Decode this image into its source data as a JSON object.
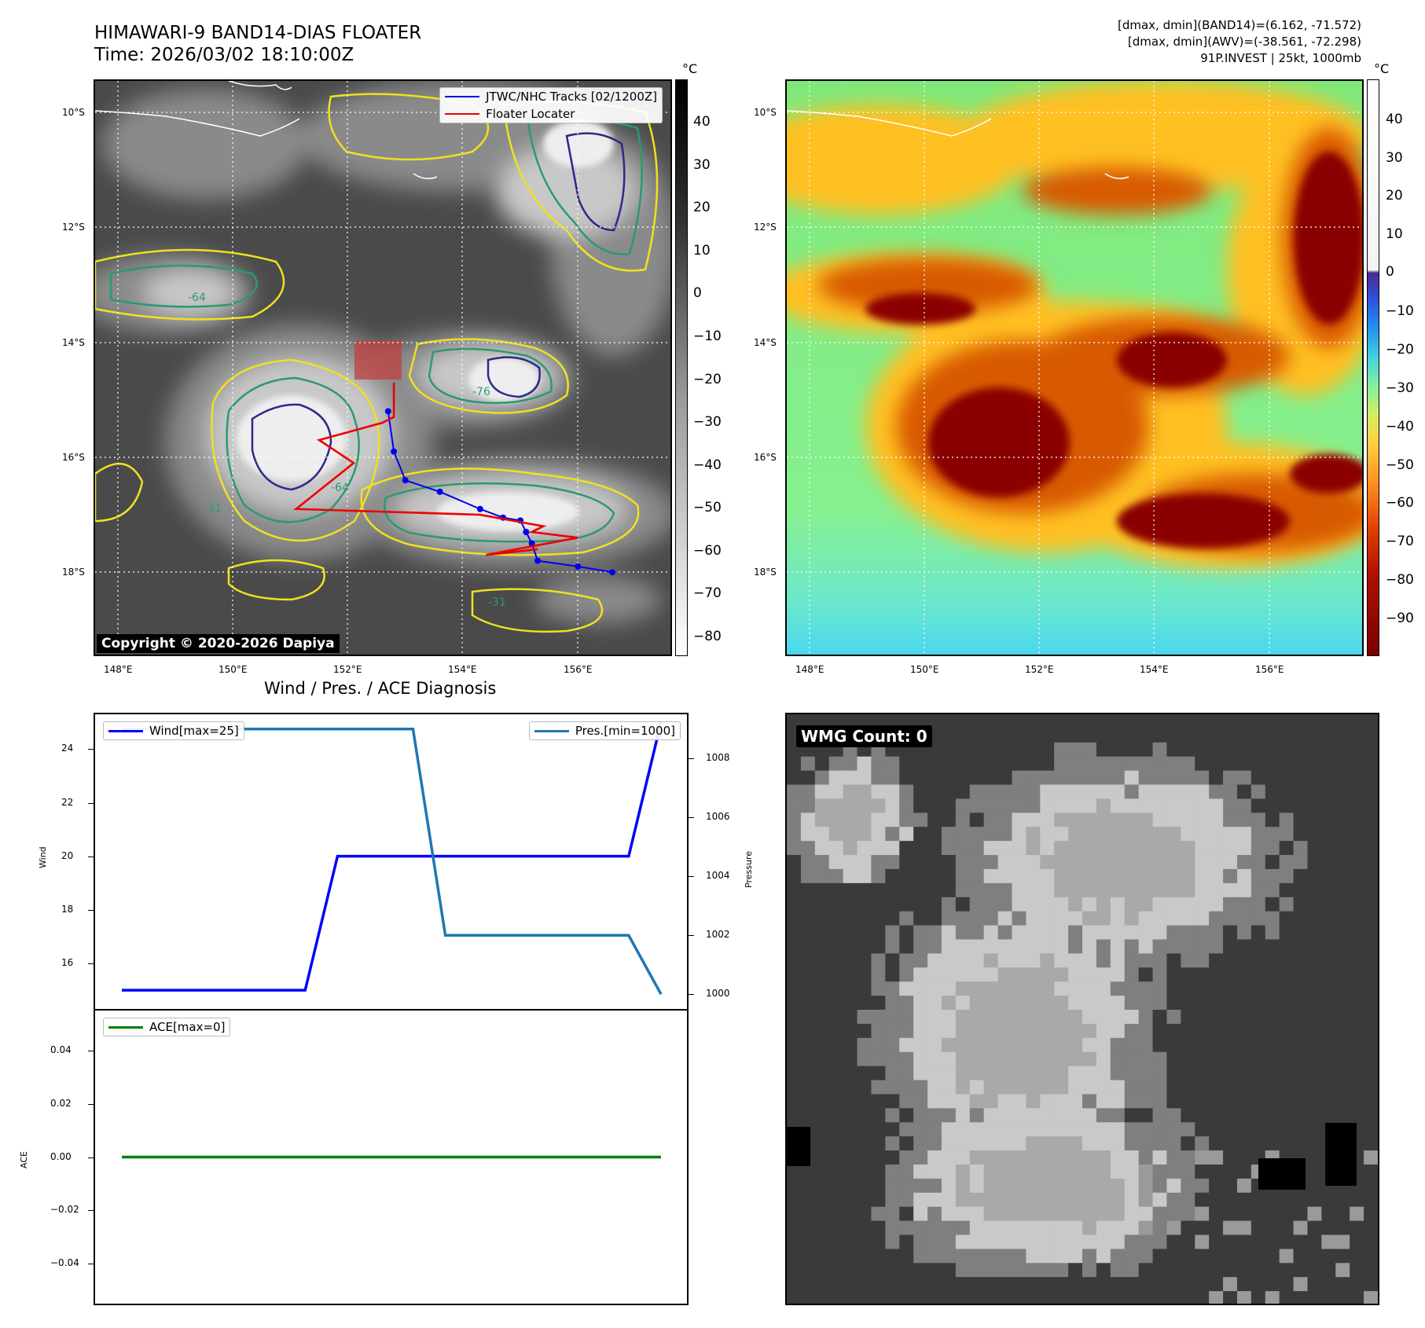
{
  "header": {
    "title_line1": "HIMAWARI-9 BAND14-DIAS FLOATER",
    "title_line2": "Time: 2026/03/02 18:10:00Z",
    "info_line1": "[dmax, dmin](BAND14)=(6.162, -71.572)",
    "info_line2": "[dmax, dmin](AWV)=(-38.561, -72.298)",
    "info_line3": "91P.INVEST | 25kt, 1000mb"
  },
  "map_axes": {
    "lat_labels": [
      "10°S",
      "12°S",
      "14°S",
      "16°S",
      "18°S"
    ],
    "lon_labels": [
      "148°E",
      "150°E",
      "152°E",
      "154°E",
      "156°E"
    ]
  },
  "ir_panel": {
    "colorbar_unit": "°C",
    "colorbar_ticks": [
      "40",
      "30",
      "20",
      "10",
      "0",
      "−10",
      "−20",
      "−30",
      "−40",
      "−50",
      "−60",
      "−70",
      "−80"
    ],
    "legend": [
      {
        "label": "JTWC/NHC Tracks [02/1200Z]",
        "color": "#0000ee"
      },
      {
        "label": "Floater Locater",
        "color": "#ee0000"
      }
    ],
    "contour_labels": [
      "-64",
      "-31",
      "-76"
    ],
    "copyright": "Copyright © 2020-2026 Dapiya"
  },
  "awv_panel": {
    "colorbar_unit": "°C",
    "colorbar_ticks": [
      "40",
      "30",
      "20",
      "10",
      "0",
      "−10",
      "−20",
      "−30",
      "−40",
      "−50",
      "−60",
      "−70",
      "−80",
      "−90"
    ]
  },
  "diagnosis": {
    "title": "Wind / Pres. / ACE Diagnosis",
    "wind_ylabel": "Wind",
    "pres_ylabel": "Pressure",
    "ace_ylabel": "ACE",
    "wind_legend": "Wind[max=25]",
    "pres_legend": "Pres.[min=1000]",
    "ace_legend": "ACE[max=0]"
  },
  "wmg_panel": {
    "label": "WMG Count: 0"
  },
  "colors": {
    "wind": "#0000ff",
    "pressure": "#1f77b4",
    "ace": "#008000",
    "track": "#0000ee",
    "locater": "#ee0000"
  },
  "chart_data": [
    {
      "type": "line",
      "name": "wind",
      "x": [
        0,
        1,
        2,
        3,
        4,
        5
      ],
      "values": [
        15,
        15,
        20,
        20,
        20,
        25
      ],
      "ylim": [
        14.3,
        25.3
      ],
      "yticks": [
        16,
        18,
        20,
        22,
        24
      ]
    },
    {
      "type": "line",
      "name": "pressure",
      "x": [
        0,
        1,
        2,
        3,
        4,
        5
      ],
      "values": [
        1009,
        1009,
        1009,
        1002,
        1002,
        1000
      ],
      "ylim": [
        999.5,
        1009.5
      ],
      "yticks": [
        1000,
        1002,
        1004,
        1006,
        1008
      ]
    },
    {
      "type": "line",
      "name": "ace",
      "x": [
        0,
        1,
        2,
        3,
        4,
        5
      ],
      "values": [
        0,
        0,
        0,
        0,
        0,
        0
      ],
      "ylim": [
        -0.055,
        0.055
      ],
      "yticks": [
        "0.04",
        "0.02",
        "0.00",
        "−0.02",
        "−0.04"
      ]
    },
    {
      "type": "line",
      "name": "JTWC/NHC Tracks [02/1200Z]",
      "lon": [
        156.6,
        156.0,
        155.3,
        155.2,
        155.1,
        155.0,
        154.7,
        154.3,
        153.6,
        153.0,
        152.8,
        152.7
      ],
      "lat": [
        -18.0,
        -17.9,
        -17.8,
        -17.5,
        -17.3,
        -17.1,
        -17.05,
        -16.9,
        -16.6,
        -16.4,
        -15.9,
        -15.2
      ]
    },
    {
      "type": "line",
      "name": "Floater Locater",
      "lon": [
        152.8,
        152.8,
        152.6,
        151.5,
        152.1,
        151.1,
        154.3,
        155.4,
        155.2,
        156.0,
        154.4,
        155.3
      ],
      "lat": [
        -14.7,
        -15.3,
        -15.4,
        -15.7,
        -16.1,
        -16.9,
        -17.0,
        -17.2,
        -17.3,
        -17.4,
        -17.7,
        -17.6
      ]
    }
  ]
}
